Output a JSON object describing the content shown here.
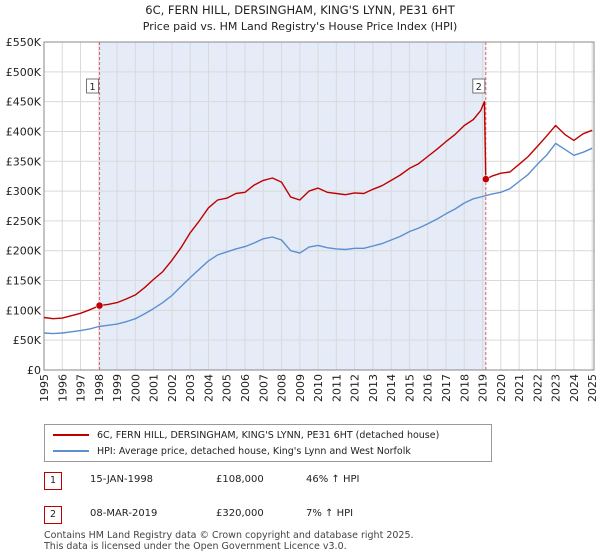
{
  "chart_data": {
    "type": "line",
    "title": "6C, FERN HILL, DERSINGHAM, KING'S LYNN, PE31 6HT",
    "subtitle": "Price paid vs. HM Land Registry's House Price Index (HPI)",
    "xlabel": "",
    "ylabel": "",
    "xlim": [
      1995,
      2025.1
    ],
    "ylim": [
      0,
      550000
    ],
    "yticks": [
      0,
      50000,
      100000,
      150000,
      200000,
      250000,
      300000,
      350000,
      400000,
      450000,
      500000,
      550000
    ],
    "ytick_labels": [
      "£0",
      "£50K",
      "£100K",
      "£150K",
      "£200K",
      "£250K",
      "£300K",
      "£350K",
      "£400K",
      "£450K",
      "£500K",
      "£550K"
    ],
    "xticks": [
      1995,
      1996,
      1997,
      1998,
      1999,
      2000,
      2001,
      2002,
      2003,
      2004,
      2005,
      2006,
      2007,
      2008,
      2009,
      2010,
      2011,
      2012,
      2013,
      2014,
      2015,
      2016,
      2017,
      2018,
      2019,
      2020,
      2021,
      2022,
      2023,
      2024,
      2025
    ],
    "xtick_labels": [
      "1995",
      "1996",
      "1997",
      "1998",
      "1999",
      "2000",
      "2001",
      "2002",
      "2003",
      "2004",
      "2005",
      "2006",
      "2007",
      "2008",
      "2009",
      "2010",
      "2011",
      "2012",
      "2013",
      "2014",
      "2015",
      "2016",
      "2017",
      "2018",
      "2019",
      "2020",
      "2021",
      "2022",
      "2023",
      "2024",
      "2025"
    ],
    "grid": true,
    "shaded_spans": [
      [
        1998.04,
        2019.18
      ]
    ],
    "series": [
      {
        "name": "6C, FERN HILL, DERSINGHAM, KING'S LYNN, PE31 6HT (detached house)",
        "color": "#c00000",
        "x": [
          1995,
          1995.5,
          1996,
          1996.5,
          1997,
          1997.5,
          1998.04,
          1998.5,
          1999,
          1999.5,
          2000,
          2000.5,
          2001,
          2001.5,
          2002,
          2002.5,
          2003,
          2003.5,
          2004,
          2004.5,
          2005,
          2005.5,
          2006,
          2006.5,
          2007,
          2007.5,
          2008,
          2008.5,
          2009,
          2009.5,
          2010,
          2010.5,
          2011,
          2011.5,
          2012,
          2012.5,
          2013,
          2013.5,
          2014,
          2014.5,
          2015,
          2015.5,
          2016,
          2016.5,
          2017,
          2017.5,
          2018,
          2018.5,
          2018.9,
          2019.1,
          2019.18,
          2019.5,
          2020,
          2020.5,
          2021,
          2021.5,
          2022,
          2022.5,
          2023,
          2023.5,
          2024,
          2024.5,
          2025
        ],
        "y": [
          88000,
          86000,
          87000,
          91000,
          95000,
          101000,
          108000,
          110000,
          113000,
          119000,
          126000,
          138000,
          152000,
          165000,
          184000,
          205000,
          230000,
          250000,
          272000,
          285000,
          288000,
          296000,
          298000,
          310000,
          318000,
          322000,
          315000,
          290000,
          285000,
          300000,
          305000,
          298000,
          296000,
          294000,
          297000,
          296000,
          303000,
          309000,
          318000,
          327000,
          338000,
          346000,
          358000,
          370000,
          383000,
          395000,
          410000,
          420000,
          435000,
          450000,
          320000,
          325000,
          330000,
          332000,
          345000,
          358000,
          375000,
          392000,
          410000,
          395000,
          385000,
          396000,
          402000
        ]
      },
      {
        "name": "HPI: Average price, detached house, King's Lynn and West Norfolk",
        "color": "#5b8fd0",
        "x": [
          1995,
          1995.5,
          1996,
          1996.5,
          1997,
          1997.5,
          1998,
          1998.5,
          1999,
          1999.5,
          2000,
          2000.5,
          2001,
          2001.5,
          2002,
          2002.5,
          2003,
          2003.5,
          2004,
          2004.5,
          2005,
          2005.5,
          2006,
          2006.5,
          2007,
          2007.5,
          2008,
          2008.5,
          2009,
          2009.5,
          2010,
          2010.5,
          2011,
          2011.5,
          2012,
          2012.5,
          2013,
          2013.5,
          2014,
          2014.5,
          2015,
          2015.5,
          2016,
          2016.5,
          2017,
          2017.5,
          2018,
          2018.5,
          2019,
          2019.5,
          2020,
          2020.5,
          2021,
          2021.5,
          2022,
          2022.5,
          2023,
          2023.5,
          2024,
          2024.5,
          2025
        ],
        "y": [
          62000,
          61000,
          62000,
          64000,
          66000,
          69000,
          73000,
          75000,
          77000,
          81000,
          86000,
          94000,
          103000,
          113000,
          125000,
          140000,
          155000,
          169000,
          183000,
          193000,
          198000,
          203000,
          207000,
          213000,
          220000,
          223000,
          218000,
          200000,
          196000,
          206000,
          209000,
          205000,
          203000,
          202000,
          204000,
          204000,
          208000,
          212000,
          218000,
          224000,
          232000,
          238000,
          245000,
          253000,
          262000,
          270000,
          280000,
          287000,
          291000,
          295000,
          298000,
          304000,
          316000,
          328000,
          345000,
          360000,
          380000,
          370000,
          360000,
          365000,
          372000
        ]
      }
    ],
    "markers": [
      {
        "label": "1",
        "x": 1998.04,
        "y": 108000
      },
      {
        "label": "2",
        "x": 2019.18,
        "y": 320000
      }
    ]
  },
  "legend": {
    "property": "6C, FERN HILL, DERSINGHAM, KING'S LYNN, PE31 6HT (detached house)",
    "hpi": "HPI: Average price, detached house, King's Lynn and West Norfolk"
  },
  "sales": [
    {
      "num": "1",
      "date": "15-JAN-1998",
      "price": "£108,000",
      "hpi": "46% ↑ HPI"
    },
    {
      "num": "2",
      "date": "08-MAR-2019",
      "price": "£320,000",
      "hpi": "7% ↑ HPI"
    }
  ],
  "footer": {
    "line1": "Contains HM Land Registry data © Crown copyright and database right 2025.",
    "line2": "This data is licensed under the Open Government Licence v3.0."
  },
  "colors": {
    "property": "#c00000",
    "hpi": "#5b8fd0",
    "shade": "#dce6f5"
  }
}
